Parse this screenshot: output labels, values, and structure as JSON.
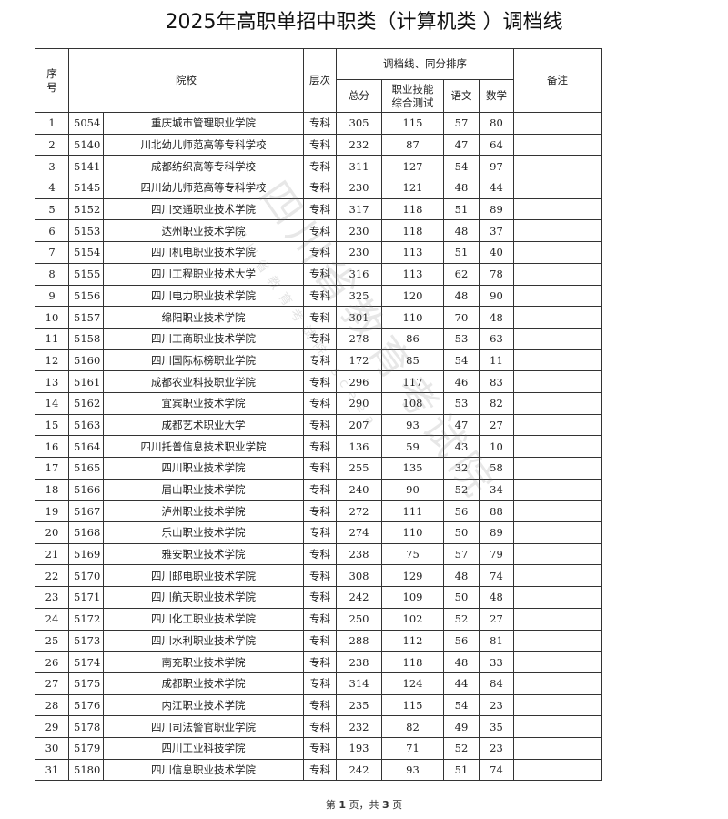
{
  "title": "2025年高职单招中职类（计算机类 ）调档线",
  "table": {
    "headers": {
      "index": "序号",
      "school": "院校",
      "level": "层次",
      "group": "调档线、同分排序",
      "total": "总分",
      "skill": "职业技能综合测试",
      "chinese": "语文",
      "math": "数学",
      "remark": "备注"
    },
    "rows": [
      {
        "no": "1",
        "code": "5054",
        "school": "重庆城市管理职业学院",
        "level": "专科",
        "total": "305",
        "skill": "115",
        "chinese": "57",
        "math": "80",
        "remark": ""
      },
      {
        "no": "2",
        "code": "5140",
        "school": "川北幼儿师范高等专科学校",
        "level": "专科",
        "total": "232",
        "skill": "87",
        "chinese": "47",
        "math": "64",
        "remark": ""
      },
      {
        "no": "3",
        "code": "5141",
        "school": "成都纺织高等专科学校",
        "level": "专科",
        "total": "311",
        "skill": "127",
        "chinese": "54",
        "math": "97",
        "remark": ""
      },
      {
        "no": "4",
        "code": "5145",
        "school": "四川幼儿师范高等专科学校",
        "level": "专科",
        "total": "230",
        "skill": "121",
        "chinese": "48",
        "math": "44",
        "remark": ""
      },
      {
        "no": "5",
        "code": "5152",
        "school": "四川交通职业技术学院",
        "level": "专科",
        "total": "317",
        "skill": "118",
        "chinese": "51",
        "math": "89",
        "remark": ""
      },
      {
        "no": "6",
        "code": "5153",
        "school": "达州职业技术学院",
        "level": "专科",
        "total": "230",
        "skill": "118",
        "chinese": "48",
        "math": "37",
        "remark": ""
      },
      {
        "no": "7",
        "code": "5154",
        "school": "四川机电职业技术学院",
        "level": "专科",
        "total": "230",
        "skill": "113",
        "chinese": "51",
        "math": "40",
        "remark": ""
      },
      {
        "no": "8",
        "code": "5155",
        "school": "四川工程职业技术大学",
        "level": "专科",
        "total": "316",
        "skill": "113",
        "chinese": "62",
        "math": "78",
        "remark": ""
      },
      {
        "no": "9",
        "code": "5156",
        "school": "四川电力职业技术学院",
        "level": "专科",
        "total": "325",
        "skill": "120",
        "chinese": "48",
        "math": "90",
        "remark": ""
      },
      {
        "no": "10",
        "code": "5157",
        "school": "绵阳职业技术学院",
        "level": "专科",
        "total": "301",
        "skill": "110",
        "chinese": "70",
        "math": "48",
        "remark": ""
      },
      {
        "no": "11",
        "code": "5158",
        "school": "四川工商职业技术学院",
        "level": "专科",
        "total": "278",
        "skill": "86",
        "chinese": "53",
        "math": "63",
        "remark": ""
      },
      {
        "no": "12",
        "code": "5160",
        "school": "四川国际标榜职业学院",
        "level": "专科",
        "total": "172",
        "skill": "85",
        "chinese": "54",
        "math": "11",
        "remark": ""
      },
      {
        "no": "13",
        "code": "5161",
        "school": "成都农业科技职业学院",
        "level": "专科",
        "total": "296",
        "skill": "117",
        "chinese": "46",
        "math": "83",
        "remark": ""
      },
      {
        "no": "14",
        "code": "5162",
        "school": "宜宾职业技术学院",
        "level": "专科",
        "total": "290",
        "skill": "108",
        "chinese": "53",
        "math": "82",
        "remark": ""
      },
      {
        "no": "15",
        "code": "5163",
        "school": "成都艺术职业大学",
        "level": "专科",
        "total": "207",
        "skill": "93",
        "chinese": "47",
        "math": "27",
        "remark": ""
      },
      {
        "no": "16",
        "code": "5164",
        "school": "四川托普信息技术职业学院",
        "level": "专科",
        "total": "136",
        "skill": "59",
        "chinese": "43",
        "math": "10",
        "remark": ""
      },
      {
        "no": "17",
        "code": "5165",
        "school": "四川职业技术学院",
        "level": "专科",
        "total": "255",
        "skill": "135",
        "chinese": "32",
        "math": "58",
        "remark": ""
      },
      {
        "no": "18",
        "code": "5166",
        "school": "眉山职业技术学院",
        "level": "专科",
        "total": "240",
        "skill": "90",
        "chinese": "52",
        "math": "34",
        "remark": ""
      },
      {
        "no": "19",
        "code": "5167",
        "school": "泸州职业技术学院",
        "level": "专科",
        "total": "272",
        "skill": "111",
        "chinese": "56",
        "math": "88",
        "remark": ""
      },
      {
        "no": "20",
        "code": "5168",
        "school": "乐山职业技术学院",
        "level": "专科",
        "total": "274",
        "skill": "110",
        "chinese": "50",
        "math": "89",
        "remark": ""
      },
      {
        "no": "21",
        "code": "5169",
        "school": "雅安职业技术学院",
        "level": "专科",
        "total": "238",
        "skill": "75",
        "chinese": "57",
        "math": "79",
        "remark": ""
      },
      {
        "no": "22",
        "code": "5170",
        "school": "四川邮电职业技术学院",
        "level": "专科",
        "total": "308",
        "skill": "129",
        "chinese": "48",
        "math": "74",
        "remark": ""
      },
      {
        "no": "23",
        "code": "5171",
        "school": "四川航天职业技术学院",
        "level": "专科",
        "total": "242",
        "skill": "109",
        "chinese": "50",
        "math": "48",
        "remark": ""
      },
      {
        "no": "24",
        "code": "5172",
        "school": "四川化工职业技术学院",
        "level": "专科",
        "total": "250",
        "skill": "102",
        "chinese": "52",
        "math": "27",
        "remark": ""
      },
      {
        "no": "25",
        "code": "5173",
        "school": "四川水利职业技术学院",
        "level": "专科",
        "total": "288",
        "skill": "112",
        "chinese": "56",
        "math": "81",
        "remark": ""
      },
      {
        "no": "26",
        "code": "5174",
        "school": "南充职业技术学院",
        "level": "专科",
        "total": "238",
        "skill": "118",
        "chinese": "48",
        "math": "33",
        "remark": ""
      },
      {
        "no": "27",
        "code": "5175",
        "school": "成都职业技术学院",
        "level": "专科",
        "total": "314",
        "skill": "124",
        "chinese": "44",
        "math": "84",
        "remark": ""
      },
      {
        "no": "28",
        "code": "5176",
        "school": "内江职业技术学院",
        "level": "专科",
        "total": "235",
        "skill": "115",
        "chinese": "54",
        "math": "23",
        "remark": ""
      },
      {
        "no": "29",
        "code": "5178",
        "school": "四川司法警官职业学院",
        "level": "专科",
        "total": "232",
        "skill": "82",
        "chinese": "49",
        "math": "35",
        "remark": ""
      },
      {
        "no": "30",
        "code": "5179",
        "school": "四川工业科技学院",
        "level": "专科",
        "total": "193",
        "skill": "71",
        "chinese": "52",
        "math": "23",
        "remark": ""
      },
      {
        "no": "31",
        "code": "5180",
        "school": "四川信息职业技术学院",
        "level": "专科",
        "total": "242",
        "skill": "93",
        "chinese": "51",
        "math": "74",
        "remark": ""
      }
    ]
  },
  "footer": {
    "prefix": "第",
    "page": "1",
    "middle": "页，共",
    "total": "3",
    "suffix": "页"
  },
  "watermark": {
    "main": "四川省教育考试院",
    "sub": "四川省教育考试院 sceea"
  }
}
